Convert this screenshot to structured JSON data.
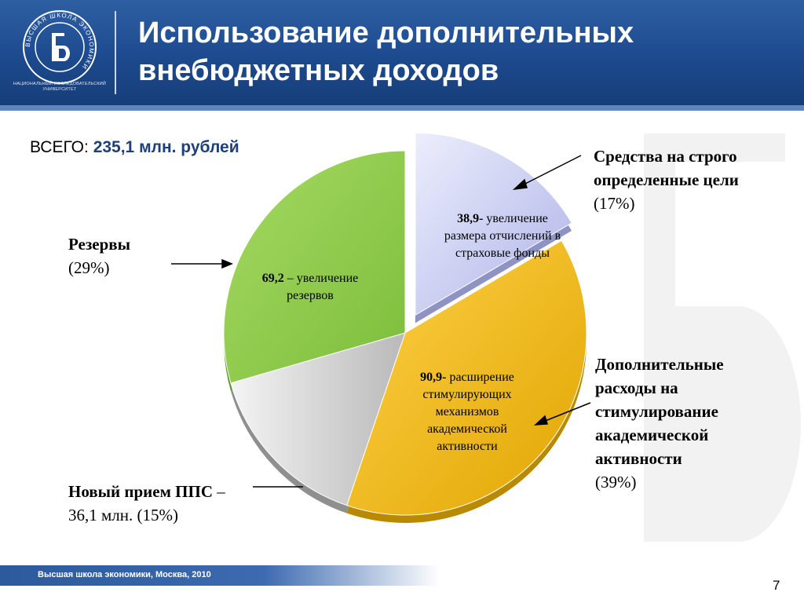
{
  "header": {
    "title_line1": "Использование дополнительных",
    "title_line2": "внебюджетных доходов",
    "logo_text": "ВЫСШАЯ ШКОЛА ЭКОНОМИКИ",
    "logo_caption_line1": "НАЦИОНАЛЬНЫЙ ИССЛЕДОВАТЕЛЬСКИЙ",
    "logo_caption_line2": "УНИВЕРСИТЕТ"
  },
  "total": {
    "label": "ВСЕГО:",
    "value": "235,1 млн. рублей"
  },
  "chart_data": {
    "type": "pie",
    "title": "",
    "categories": [
      "Средства на строго определенные цели",
      "Дополнительные расходы на стимулирование академической активности",
      "Новый прием ППС",
      "Резервы"
    ],
    "values": [
      38.9,
      90.9,
      36.1,
      69.2
    ],
    "percentages": [
      17,
      39,
      15,
      29
    ],
    "units": "млн. рублей",
    "exploded": [
      true,
      false,
      false,
      false
    ],
    "colors": [
      "#c3c8ef",
      "#f2b705",
      "#d5d5d5",
      "#8fcd4c"
    ],
    "inner_labels": [
      {
        "value": "38,9-",
        "text_line1": "увеличение",
        "text_line2": "размера отчислений в",
        "text_line3": "страховые фонды"
      },
      {
        "value": "90,9-",
        "text_line1": "расширение",
        "text_line2": "стимулирующих",
        "text_line3": "механизмов",
        "text_line4": "академической",
        "text_line5": "активности"
      },
      {
        "value": "69,2",
        "text_line1": "– увеличение",
        "text_line2": "резервов"
      }
    ],
    "outer_labels": [
      {
        "line1": "Средства на строго",
        "line2": "определенные цели",
        "pct": "(17%)"
      },
      {
        "line1": "Дополнительные",
        "line2": "расходы на",
        "line3": "стимулирование",
        "line4": "академической",
        "line5": "активности",
        "pct": "(39%)"
      },
      {
        "line1": "Новый прием ППС",
        "line1_suffix": " –",
        "line2": "36,1 млн.  (15%)"
      },
      {
        "line1": "Резервы",
        "pct": "(29%)"
      }
    ]
  },
  "footer": {
    "text": "Высшая школа экономики, Москва, 2010",
    "page_number": "7"
  }
}
